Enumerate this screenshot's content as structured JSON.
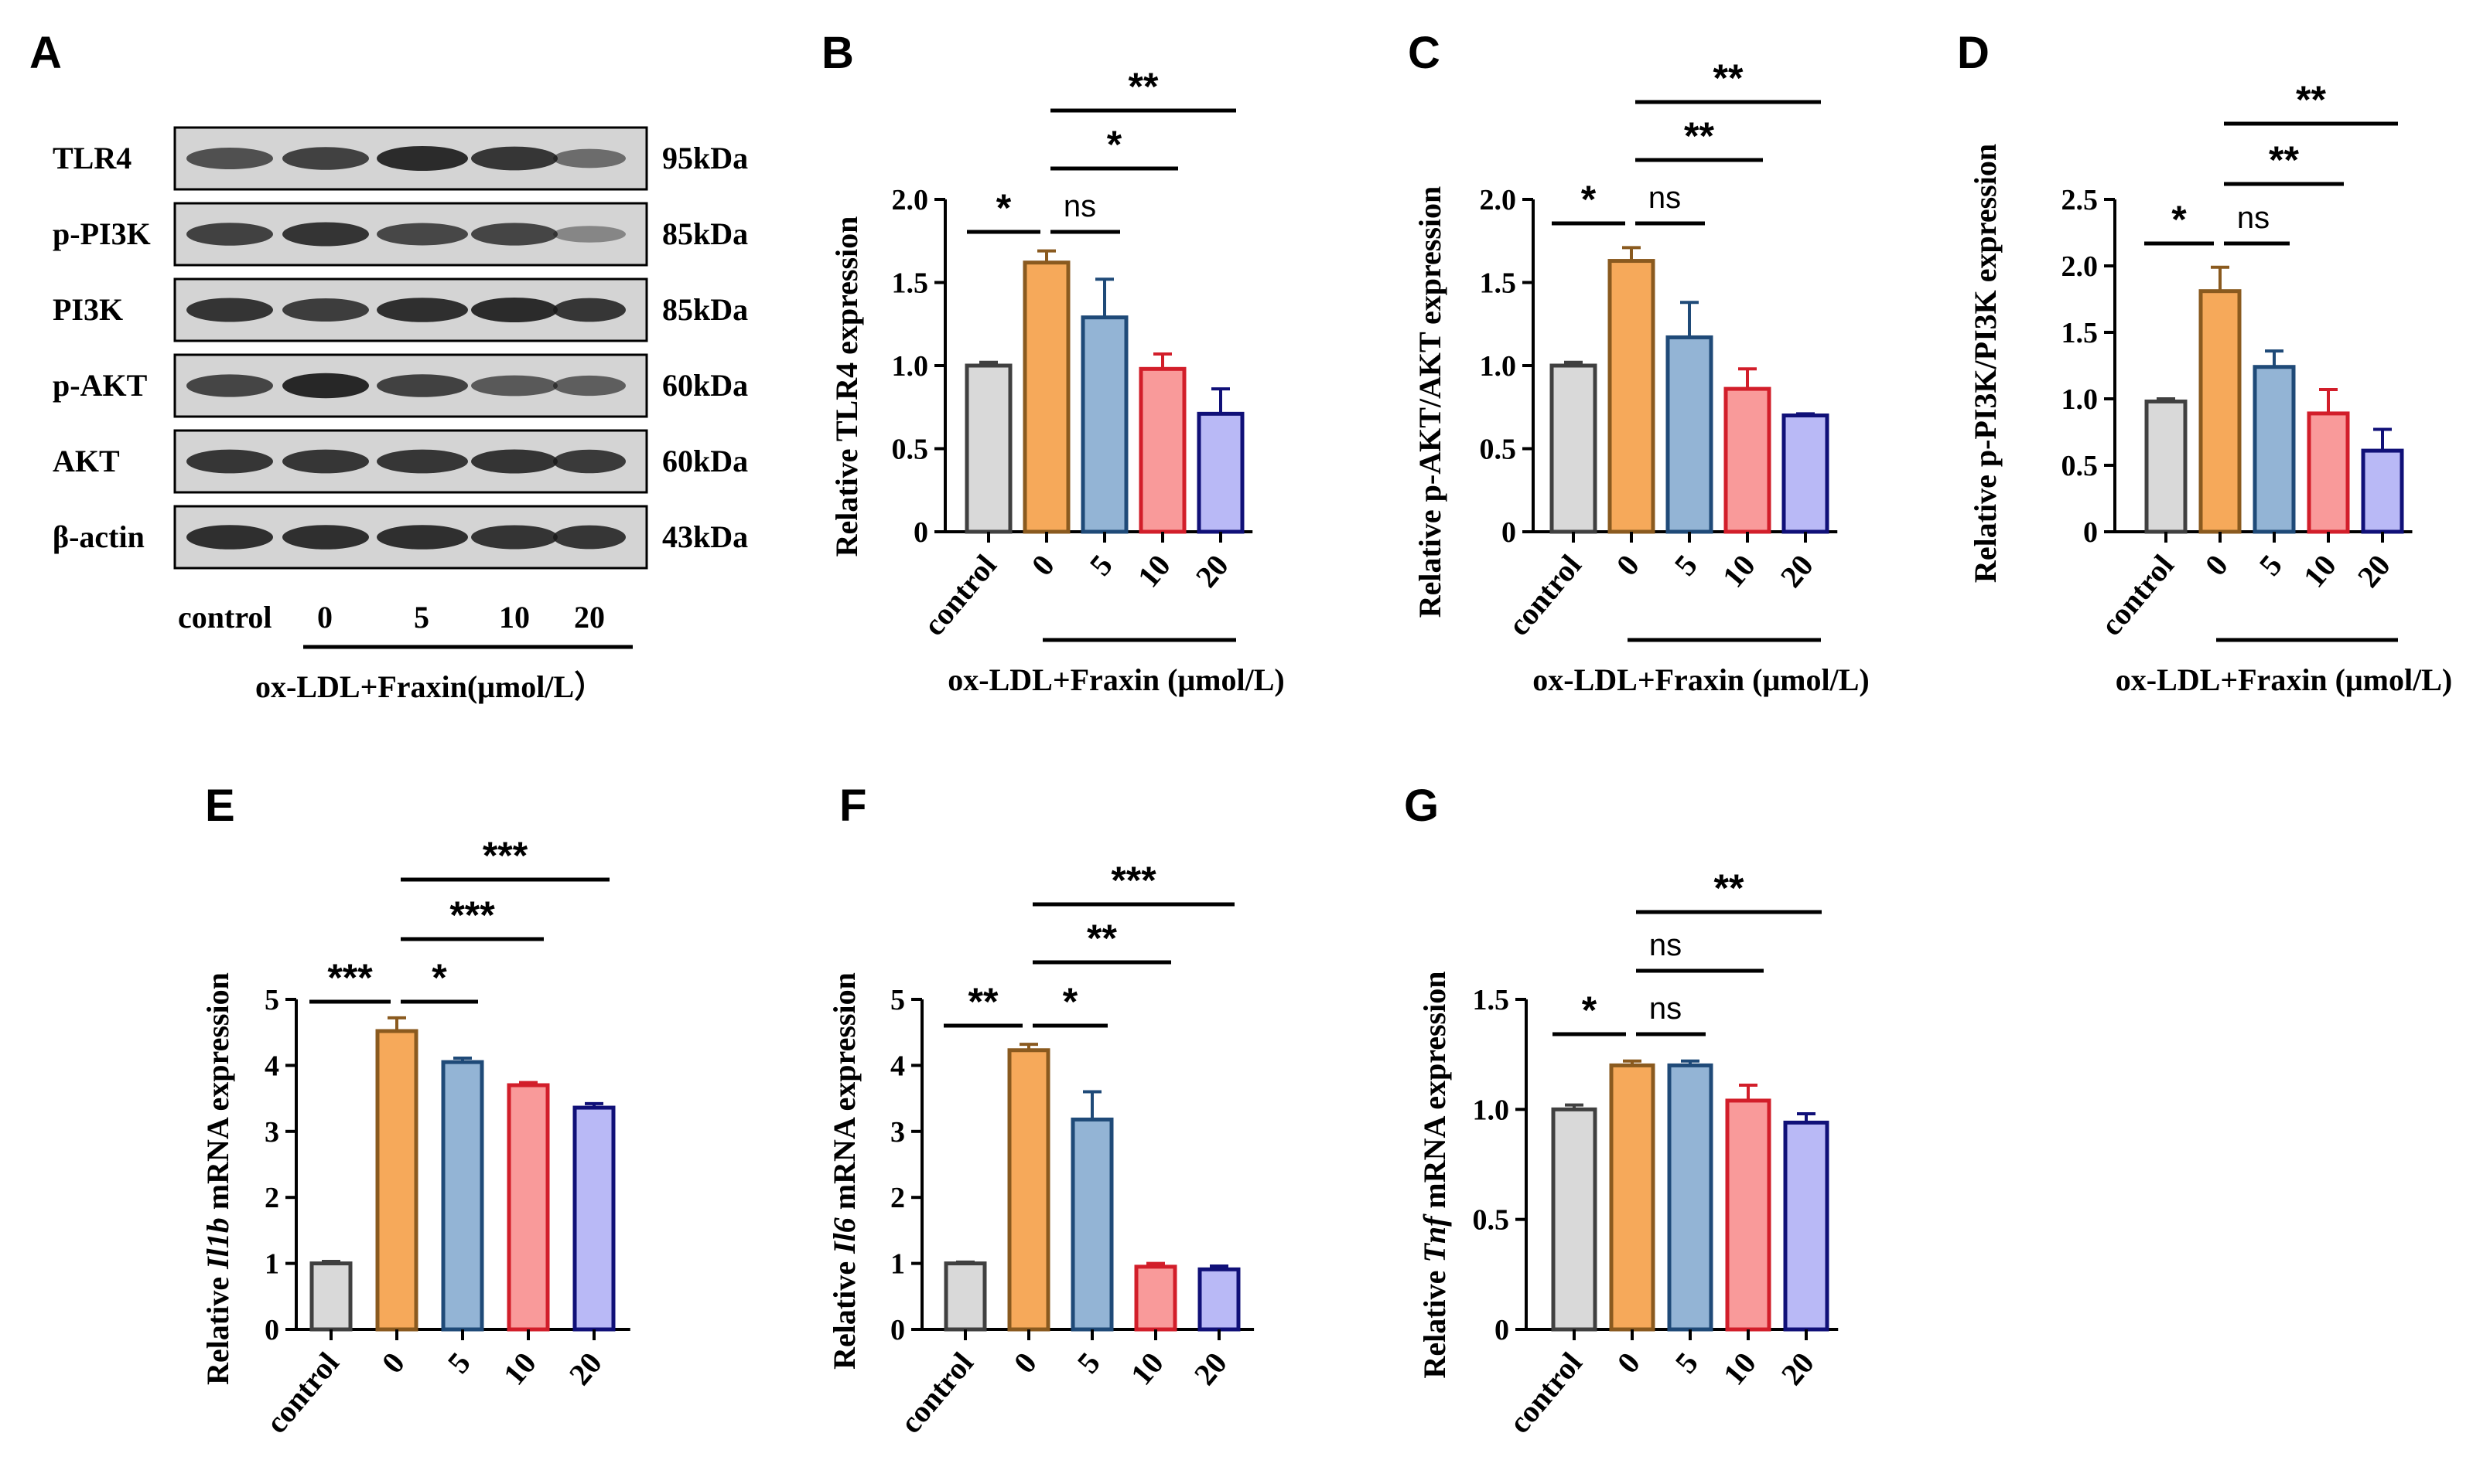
{
  "figure": {
    "panel_a": {
      "letter": "A",
      "rows": [
        {
          "protein": "TLR4",
          "size": "95kDa",
          "intensities": [
            0.62,
            0.72,
            0.88,
            0.8,
            0.42
          ]
        },
        {
          "protein": "p-PI3K",
          "size": "85kDa",
          "intensities": [
            0.72,
            0.82,
            0.68,
            0.7,
            0.22
          ]
        },
        {
          "protein": "PI3K",
          "size": "85kDa",
          "intensities": [
            0.82,
            0.75,
            0.85,
            0.88,
            0.8
          ]
        },
        {
          "protein": "p-AKT",
          "size": "60kDa",
          "intensities": [
            0.7,
            0.9,
            0.72,
            0.55,
            0.52
          ]
        },
        {
          "protein": "AKT",
          "size": "60kDa",
          "intensities": [
            0.8,
            0.8,
            0.8,
            0.82,
            0.78
          ]
        },
        {
          "protein": "β-actin",
          "size": "43kDa",
          "intensities": [
            0.85,
            0.85,
            0.85,
            0.82,
            0.8
          ]
        }
      ],
      "lanes": [
        "control",
        "0",
        "5",
        "10",
        "20"
      ],
      "group_label": "ox-LDL+Fraxin(μmol/L）"
    }
  },
  "chart_data": [
    {
      "panel": "B",
      "type": "bar",
      "categories": [
        "control",
        "0",
        "5",
        "10",
        "20"
      ],
      "values": [
        1.0,
        1.62,
        1.29,
        0.98,
        0.71
      ],
      "errors": [
        0.02,
        0.07,
        0.23,
        0.09,
        0.15
      ],
      "ylabel": "Relative TLR4 expression",
      "ylim": [
        0,
        2.0
      ],
      "yticks": [
        "0",
        "0.5",
        "1.0",
        "1.5",
        "2.0"
      ],
      "group_label": "ox-LDL+Fraxin (μmol/L)",
      "significance": [
        {
          "from": "control",
          "to": "0",
          "label": "*"
        },
        {
          "from": "0",
          "to": "5",
          "label": "ns"
        },
        {
          "from": "0",
          "to": "10",
          "label": "*"
        },
        {
          "from": "0",
          "to": "20",
          "label": "**"
        }
      ]
    },
    {
      "panel": "C",
      "type": "bar",
      "categories": [
        "control",
        "0",
        "5",
        "10",
        "20"
      ],
      "values": [
        1.0,
        1.63,
        1.17,
        0.86,
        0.7
      ],
      "errors": [
        0.02,
        0.08,
        0.21,
        0.12,
        0.01
      ],
      "ylabel": "Relative p-AKT/AKT expression",
      "ylim": [
        0,
        2.0
      ],
      "yticks": [
        "0",
        "0.5",
        "1.0",
        "1.5",
        "2.0"
      ],
      "group_label": "ox-LDL+Fraxin (μmol/L)",
      "significance": [
        {
          "from": "control",
          "to": "0",
          "label": "*"
        },
        {
          "from": "0",
          "to": "5",
          "label": "ns"
        },
        {
          "from": "0",
          "to": "10",
          "label": "**"
        },
        {
          "from": "0",
          "to": "20",
          "label": "**"
        }
      ]
    },
    {
      "panel": "D",
      "type": "bar",
      "categories": [
        "control",
        "0",
        "5",
        "10",
        "20"
      ],
      "values": [
        0.98,
        1.81,
        1.24,
        0.89,
        0.61
      ],
      "errors": [
        0.02,
        0.18,
        0.12,
        0.18,
        0.16
      ],
      "ylabel": "Relative p-PI3K/PI3K expression",
      "ylim": [
        0,
        2.5
      ],
      "yticks": [
        "0",
        "0.5",
        "1.0",
        "1.5",
        "2.0",
        "2.5"
      ],
      "group_label": "ox-LDL+Fraxin (μmol/L)",
      "significance": [
        {
          "from": "control",
          "to": "0",
          "label": "*"
        },
        {
          "from": "0",
          "to": "5",
          "label": "ns"
        },
        {
          "from": "0",
          "to": "10",
          "label": "**"
        },
        {
          "from": "0",
          "to": "20",
          "label": "**"
        }
      ]
    },
    {
      "panel": "E",
      "type": "bar",
      "categories": [
        "control",
        "0",
        "5",
        "10",
        "20"
      ],
      "values": [
        1.0,
        4.52,
        4.05,
        3.7,
        3.36
      ],
      "errors": [
        0.03,
        0.2,
        0.06,
        0.04,
        0.06
      ],
      "ylabel_pre": "Relative ",
      "ylabel_gene": "Il1b",
      "ylabel_post": " mRNA expression",
      "ylim": [
        0,
        5
      ],
      "yticks": [
        "0",
        "1",
        "2",
        "3",
        "4",
        "5"
      ],
      "significance": [
        {
          "from": "control",
          "to": "0",
          "label": "***"
        },
        {
          "from": "0",
          "to": "5",
          "label": "*"
        },
        {
          "from": "0",
          "to": "10",
          "label": "***"
        },
        {
          "from": "0",
          "to": "20",
          "label": "***"
        }
      ]
    },
    {
      "panel": "F",
      "type": "bar",
      "categories": [
        "control",
        "0",
        "5",
        "10",
        "20"
      ],
      "values": [
        1.0,
        4.23,
        3.18,
        0.95,
        0.91
      ],
      "errors": [
        0.02,
        0.09,
        0.42,
        0.05,
        0.05
      ],
      "ylabel_pre": "Relative ",
      "ylabel_gene": "Il6",
      "ylabel_post": " mRNA expression",
      "ylim": [
        0,
        5
      ],
      "yticks": [
        "0",
        "1",
        "2",
        "3",
        "4",
        "5"
      ],
      "significance": [
        {
          "from": "control",
          "to": "0",
          "label": "**"
        },
        {
          "from": "0",
          "to": "5",
          "label": "*"
        },
        {
          "from": "0",
          "to": "10",
          "label": "**"
        },
        {
          "from": "0",
          "to": "20",
          "label": "***"
        }
      ]
    },
    {
      "panel": "G",
      "type": "bar",
      "categories": [
        "control",
        "0",
        "5",
        "10",
        "20"
      ],
      "values": [
        1.0,
        1.2,
        1.2,
        1.04,
        0.94
      ],
      "errors": [
        0.02,
        0.02,
        0.02,
        0.07,
        0.04
      ],
      "ylabel_pre": "Relative ",
      "ylabel_gene": "Tnf",
      "ylabel_post": " mRNA expression",
      "ylim": [
        0,
        1.5
      ],
      "yticks": [
        "0",
        "0.5",
        "1.0",
        "1.5"
      ],
      "significance": [
        {
          "from": "control",
          "to": "0",
          "label": "*"
        },
        {
          "from": "0",
          "to": "5",
          "label": "ns"
        },
        {
          "from": "0",
          "to": "10",
          "label": "ns"
        },
        {
          "from": "0",
          "to": "20",
          "label": "**"
        }
      ]
    }
  ],
  "colors": {
    "fills": [
      "#d9d9d9",
      "#f6a95a",
      "#93b4d5",
      "#f99a9a",
      "#b9b9f6"
    ],
    "edges": [
      "#404040",
      "#8a5a1f",
      "#1f4a78",
      "#d21e2a",
      "#101078"
    ],
    "blot_background": "#d4d4d4",
    "band": "#1a1a1a"
  }
}
